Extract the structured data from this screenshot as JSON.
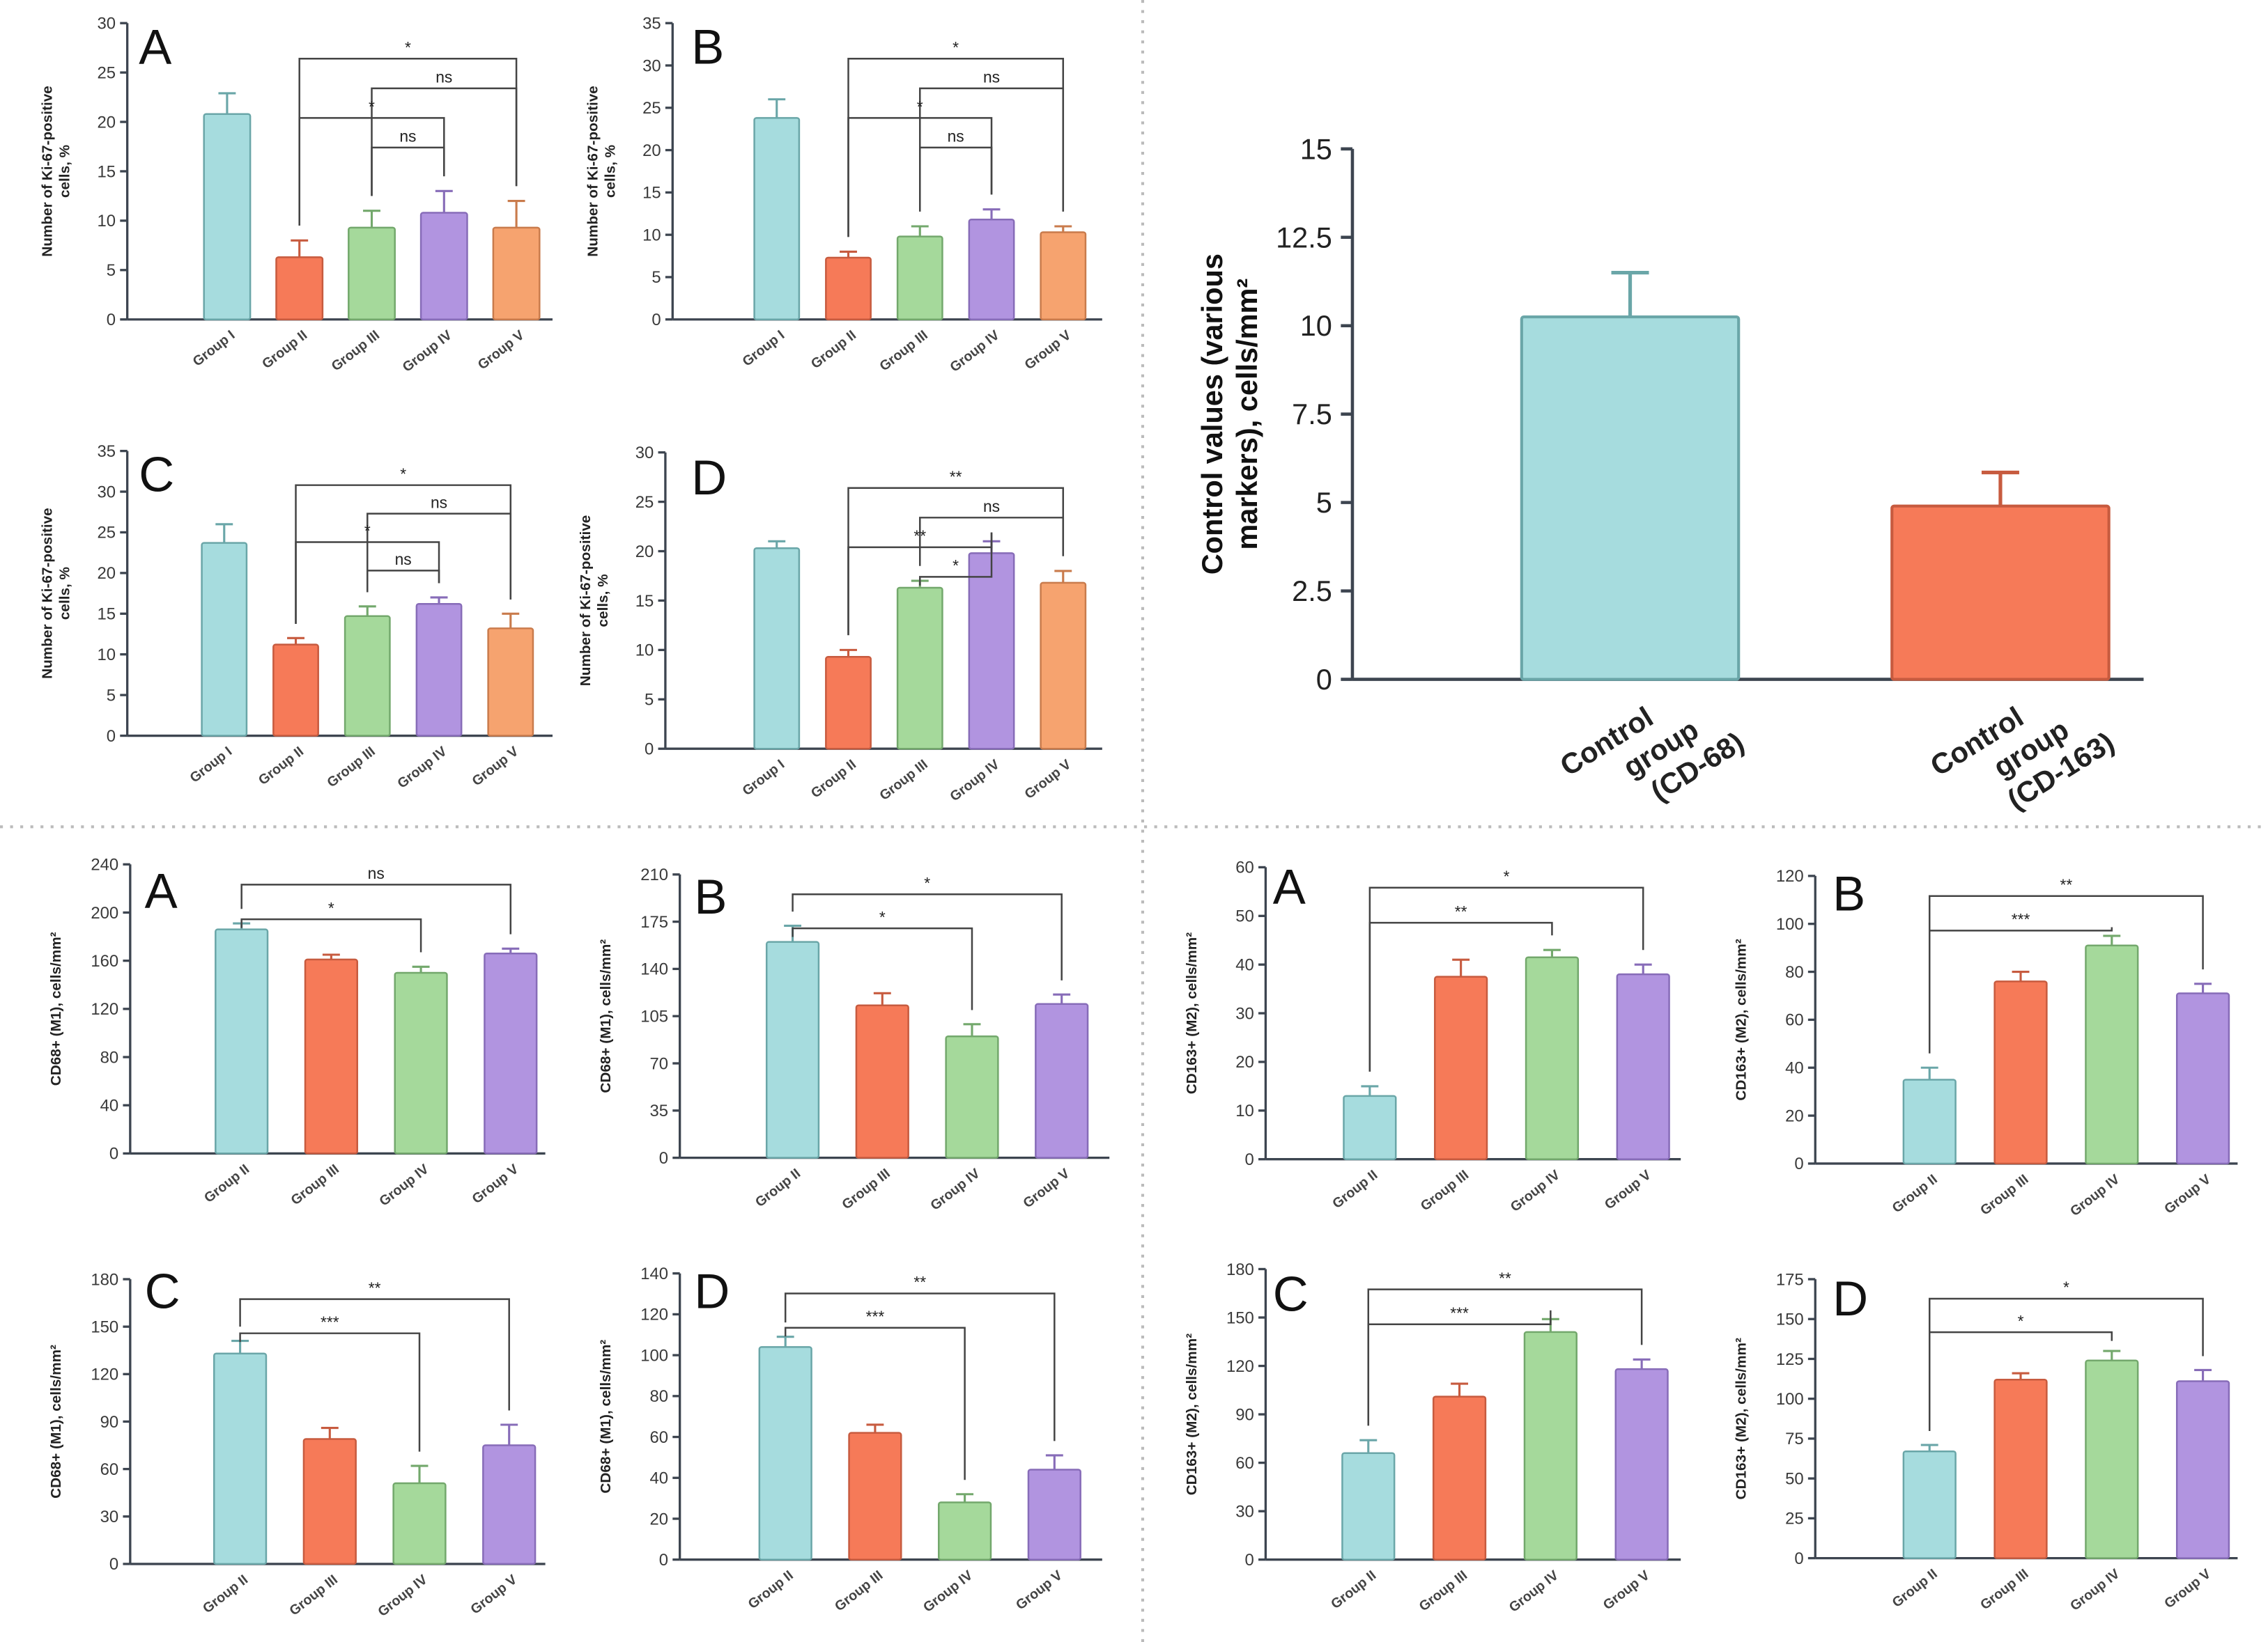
{
  "palette": {
    "teal": "#a6dcde",
    "teal_edge": "#6aa6a8",
    "red": "#f67a58",
    "red_edge": "#c75b3f",
    "green": "#a5d99b",
    "green_edge": "#73a86c",
    "purple": "#b194e0",
    "purple_edge": "#876cb8",
    "orange": "#f6a36f",
    "orange_edge": "#c97b4c"
  },
  "chart_data": [
    {
      "type": "bar",
      "panel": "A",
      "group": "ki67",
      "ylabel": [
        "Number of Ki-67-positive",
        "cells, %"
      ],
      "ylim": [
        0,
        30
      ],
      "yticks": [
        0,
        5,
        10,
        15,
        20,
        25,
        30
      ],
      "categories": [
        "Group I",
        "Group II",
        "Group III",
        "Group IV",
        "Group V"
      ],
      "values": [
        20.8,
        6.3,
        9.3,
        10.8,
        9.3
      ],
      "errors": [
        2.1,
        1.7,
        1.7,
        2.2,
        2.7
      ],
      "colors": [
        "teal",
        "red",
        "green",
        "purple",
        "orange"
      ],
      "significance": [
        {
          "from": 1,
          "to": 4,
          "label": "*"
        },
        {
          "from": 2,
          "to": 4,
          "label": "ns"
        },
        {
          "from": 1,
          "to": 3,
          "label": "*"
        },
        {
          "from": 2,
          "to": 3,
          "label": "ns"
        }
      ]
    },
    {
      "type": "bar",
      "panel": "B",
      "group": "ki67",
      "ylabel": [
        "Number of Ki-67-positive",
        "cells, %"
      ],
      "ylim": [
        0,
        35
      ],
      "yticks": [
        0,
        5,
        10,
        15,
        20,
        25,
        30,
        35
      ],
      "categories": [
        "Group I",
        "Group II",
        "Group III",
        "Group IV",
        "Group V"
      ],
      "values": [
        23.8,
        7.3,
        9.8,
        11.8,
        10.3
      ],
      "errors": [
        2.2,
        0.7,
        1.2,
        1.2,
        0.7
      ],
      "colors": [
        "teal",
        "red",
        "green",
        "purple",
        "orange"
      ],
      "significance": [
        {
          "from": 1,
          "to": 4,
          "label": "*"
        },
        {
          "from": 2,
          "to": 4,
          "label": "ns"
        },
        {
          "from": 1,
          "to": 3,
          "label": "*"
        },
        {
          "from": 2,
          "to": 3,
          "label": "ns"
        }
      ]
    },
    {
      "type": "bar",
      "panel": "C",
      "group": "ki67",
      "ylabel": [
        "Number of Ki-67-positive",
        "cells, %"
      ],
      "ylim": [
        0,
        35
      ],
      "yticks": [
        0,
        5,
        10,
        15,
        20,
        25,
        30,
        35
      ],
      "categories": [
        "Group I",
        "Group II",
        "Group III",
        "Group IV",
        "Group V"
      ],
      "values": [
        23.7,
        11.2,
        14.7,
        16.2,
        13.2
      ],
      "errors": [
        2.3,
        0.8,
        1.2,
        0.8,
        1.8
      ],
      "colors": [
        "teal",
        "red",
        "green",
        "purple",
        "orange"
      ],
      "significance": [
        {
          "from": 1,
          "to": 4,
          "label": "*"
        },
        {
          "from": 2,
          "to": 4,
          "label": "ns"
        },
        {
          "from": 1,
          "to": 3,
          "label": "*"
        },
        {
          "from": 2,
          "to": 3,
          "label": "ns"
        }
      ]
    },
    {
      "type": "bar",
      "panel": "D",
      "group": "ki67",
      "ylabel": [
        "Number of Ki-67-positive",
        "cells, %"
      ],
      "ylim": [
        0,
        30
      ],
      "yticks": [
        0,
        5,
        10,
        15,
        20,
        25,
        30
      ],
      "categories": [
        "Group I",
        "Group II",
        "Group III",
        "Group IV",
        "Group V"
      ],
      "values": [
        20.3,
        9.3,
        16.3,
        19.8,
        16.8
      ],
      "errors": [
        0.7,
        0.7,
        0.7,
        1.2,
        1.2
      ],
      "colors": [
        "teal",
        "red",
        "green",
        "purple",
        "orange"
      ],
      "significance": [
        {
          "from": 1,
          "to": 4,
          "label": "**"
        },
        {
          "from": 2,
          "to": 4,
          "label": "ns"
        },
        {
          "from": 1,
          "to": 3,
          "label": "**"
        },
        {
          "from": 2,
          "to": 3,
          "label": "*"
        }
      ]
    },
    {
      "type": "bar",
      "panel": "",
      "group": "control",
      "ylabel": [
        "Control values (various",
        "markers), cells/mm²"
      ],
      "ylim": [
        0,
        15
      ],
      "yticks": [
        0,
        2.5,
        5,
        7.5,
        10,
        12.5,
        15
      ],
      "categories": [
        [
          "Control",
          "group",
          "(CD-68)"
        ],
        [
          "Control",
          "group",
          "(CD-163)"
        ]
      ],
      "values": [
        10.25,
        4.9
      ],
      "errors": [
        1.25,
        0.95
      ],
      "colors": [
        "teal",
        "red"
      ],
      "significance": []
    },
    {
      "type": "bar",
      "panel": "A",
      "group": "cd68",
      "ylabel": [
        "CD68+ (M1), cells/mm²"
      ],
      "ylim": [
        0,
        240
      ],
      "yticks": [
        0,
        40,
        80,
        120,
        160,
        200,
        240
      ],
      "categories": [
        "Group II",
        "Group III",
        "Group IV",
        "Group V"
      ],
      "values": [
        186,
        161,
        150,
        166
      ],
      "errors": [
        5,
        4,
        5,
        4
      ],
      "colors": [
        "teal",
        "red",
        "green",
        "purple"
      ],
      "significance": [
        {
          "from": 0,
          "to": 3,
          "label": "ns"
        },
        {
          "from": 0,
          "to": 2,
          "label": "*"
        }
      ]
    },
    {
      "type": "bar",
      "panel": "B",
      "group": "cd68",
      "ylabel": [
        "CD68+ (M1), cells/mm²"
      ],
      "ylim": [
        0,
        210
      ],
      "yticks": [
        0,
        35,
        70,
        105,
        140,
        175,
        210
      ],
      "categories": [
        "Group II",
        "Group III",
        "Group IV",
        "Group V"
      ],
      "values": [
        160,
        113,
        90,
        114
      ],
      "errors": [
        12,
        9,
        9,
        7
      ],
      "colors": [
        "teal",
        "red",
        "green",
        "purple"
      ],
      "significance": [
        {
          "from": 0,
          "to": 3,
          "label": "*"
        },
        {
          "from": 0,
          "to": 2,
          "label": "*"
        }
      ]
    },
    {
      "type": "bar",
      "panel": "C",
      "group": "cd68",
      "ylabel": [
        "CD68+ (M1), cells/mm²"
      ],
      "ylim": [
        0,
        180
      ],
      "yticks": [
        0,
        30,
        60,
        90,
        120,
        150,
        180
      ],
      "categories": [
        "Group II",
        "Group III",
        "Group IV",
        "Group V"
      ],
      "values": [
        133,
        79,
        51,
        75
      ],
      "errors": [
        8,
        7,
        11,
        13
      ],
      "colors": [
        "teal",
        "red",
        "green",
        "purple"
      ],
      "significance": [
        {
          "from": 0,
          "to": 3,
          "label": "**"
        },
        {
          "from": 0,
          "to": 2,
          "label": "***"
        }
      ]
    },
    {
      "type": "bar",
      "panel": "D",
      "group": "cd68",
      "ylabel": [
        "CD68+ (M1), cells/mm²"
      ],
      "ylim": [
        0,
        140
      ],
      "yticks": [
        0,
        20,
        40,
        60,
        80,
        100,
        120,
        140
      ],
      "categories": [
        "Group II",
        "Group III",
        "Group IV",
        "Group V"
      ],
      "values": [
        104,
        62,
        28,
        44
      ],
      "errors": [
        5,
        4,
        4,
        7
      ],
      "colors": [
        "teal",
        "red",
        "green",
        "purple"
      ],
      "significance": [
        {
          "from": 0,
          "to": 3,
          "label": "**"
        },
        {
          "from": 0,
          "to": 2,
          "label": "***"
        }
      ]
    },
    {
      "type": "bar",
      "panel": "A",
      "group": "cd163",
      "ylabel": [
        "CD163+ (M2), cells/mm²"
      ],
      "ylim": [
        0,
        60
      ],
      "yticks": [
        0,
        10,
        20,
        30,
        40,
        50,
        60
      ],
      "categories": [
        "Group II",
        "Group III",
        "Group IV",
        "Group V"
      ],
      "values": [
        13,
        37.5,
        41.5,
        38
      ],
      "errors": [
        2,
        3.5,
        1.5,
        2
      ],
      "colors": [
        "teal",
        "red",
        "green",
        "purple"
      ],
      "significance": [
        {
          "from": 0,
          "to": 3,
          "label": "*"
        },
        {
          "from": 0,
          "to": 2,
          "label": "**"
        }
      ]
    },
    {
      "type": "bar",
      "panel": "B",
      "group": "cd163",
      "ylabel": [
        "CD163+ (M2), cells/mm²"
      ],
      "ylim": [
        0,
        120
      ],
      "yticks": [
        0,
        20,
        40,
        60,
        80,
        100,
        120
      ],
      "categories": [
        "Group II",
        "Group III",
        "Group IV",
        "Group V"
      ],
      "values": [
        35,
        76,
        91,
        71
      ],
      "errors": [
        5,
        4,
        4,
        4
      ],
      "colors": [
        "teal",
        "red",
        "green",
        "purple"
      ],
      "significance": [
        {
          "from": 0,
          "to": 3,
          "label": "**"
        },
        {
          "from": 0,
          "to": 2,
          "label": "***"
        }
      ]
    },
    {
      "type": "bar",
      "panel": "C",
      "group": "cd163",
      "ylabel": [
        "CD163+ (M2), cells/mm²"
      ],
      "ylim": [
        0,
        180
      ],
      "yticks": [
        0,
        30,
        60,
        90,
        120,
        150,
        180
      ],
      "categories": [
        "Group II",
        "Group III",
        "Group IV",
        "Group V"
      ],
      "values": [
        66,
        101,
        141,
        118
      ],
      "errors": [
        8,
        8,
        8,
        6
      ],
      "colors": [
        "teal",
        "red",
        "green",
        "purple"
      ],
      "significance": [
        {
          "from": 0,
          "to": 3,
          "label": "**"
        },
        {
          "from": 0,
          "to": 2,
          "label": "***"
        }
      ]
    },
    {
      "type": "bar",
      "panel": "D",
      "group": "cd163",
      "ylabel": [
        "CD163+ (M2), cells/mm²"
      ],
      "ylim": [
        0,
        175
      ],
      "yticks": [
        0,
        25,
        50,
        75,
        100,
        125,
        150,
        175
      ],
      "categories": [
        "Group II",
        "Group III",
        "Group IV",
        "Group V"
      ],
      "values": [
        67,
        112,
        124,
        111
      ],
      "errors": [
        4,
        4,
        6,
        7
      ],
      "colors": [
        "teal",
        "red",
        "green",
        "purple"
      ],
      "significance": [
        {
          "from": 0,
          "to": 3,
          "label": "*"
        },
        {
          "from": 0,
          "to": 2,
          "label": "*"
        }
      ]
    }
  ]
}
